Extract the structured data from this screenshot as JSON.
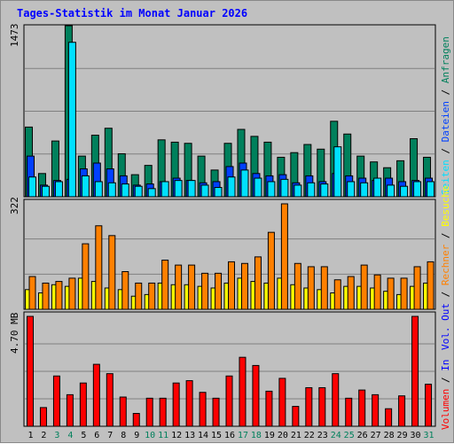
{
  "title": "Tages-Statistik im Monat Januar 2026",
  "colors": {
    "background": "#C0C0C0",
    "title": "#0000FF",
    "anfragen": "#00805C",
    "dateien": "#0040FF",
    "seiten": "#00E0FF",
    "besuche": "#FFFF00",
    "rechner": "#FF8000",
    "volumen": "#FF0000",
    "weekend_day": "#00805C",
    "normal_day": "#000000"
  },
  "chart_data": [
    {
      "type": "bar",
      "panel": "top",
      "y_max_label": "1473",
      "ylim": [
        0,
        1473
      ],
      "grid": true,
      "legend_placement": "right, vertical",
      "legend": [
        {
          "label": "Anfragen",
          "color": "#00805C"
        },
        {
          "label": "Dateien",
          "color": "#0040FF"
        },
        {
          "label": "Seiten",
          "color": "#00E0FF"
        }
      ],
      "categories": [
        "1",
        "2",
        "3",
        "4",
        "5",
        "6",
        "7",
        "8",
        "9",
        "10",
        "11",
        "12",
        "13",
        "14",
        "15",
        "16",
        "17",
        "18",
        "19",
        "20",
        "21",
        "22",
        "23",
        "24",
        "25",
        "26",
        "27",
        "28",
        "29",
        "30",
        "31"
      ],
      "series": [
        {
          "name": "Anfragen",
          "values": [
            600,
            200,
            480,
            1473,
            350,
            530,
            590,
            370,
            190,
            270,
            490,
            470,
            460,
            350,
            230,
            460,
            580,
            520,
            470,
            340,
            380,
            450,
            410,
            650,
            540,
            350,
            300,
            250,
            310,
            500,
            340
          ]
        },
        {
          "name": "Dateien",
          "values": [
            350,
            100,
            140,
            150,
            240,
            290,
            240,
            180,
            100,
            110,
            130,
            160,
            140,
            120,
            130,
            260,
            290,
            200,
            180,
            190,
            120,
            180,
            130,
            200,
            180,
            160,
            140,
            160,
            130,
            140,
            160
          ]
        },
        {
          "name": "Seiten",
          "values": [
            170,
            90,
            130,
            1330,
            180,
            130,
            120,
            110,
            90,
            70,
            130,
            140,
            140,
            100,
            80,
            170,
            230,
            160,
            130,
            150,
            100,
            120,
            110,
            430,
            130,
            120,
            160,
            100,
            90,
            130,
            130
          ]
        }
      ]
    },
    {
      "type": "bar",
      "panel": "middle",
      "y_max_label": "322",
      "ylim": [
        0,
        322
      ],
      "grid": true,
      "legend_placement": "right, vertical",
      "legend": [
        {
          "label": "Besuche",
          "color": "#FFFF00"
        },
        {
          "label": "Rechner",
          "color": "#FF8000"
        },
        {
          "label": "Out",
          "color": "#FFFF00"
        },
        {
          "label": "Vol.",
          "color": "#0000FF"
        }
      ],
      "categories": [
        "1",
        "2",
        "3",
        "4",
        "5",
        "6",
        "7",
        "8",
        "9",
        "10",
        "11",
        "12",
        "13",
        "14",
        "15",
        "16",
        "17",
        "18",
        "19",
        "20",
        "21",
        "22",
        "23",
        "24",
        "25",
        "26",
        "27",
        "28",
        "29",
        "30",
        "31"
      ],
      "series": [
        {
          "name": "Besuche",
          "values": [
            60,
            50,
            75,
            70,
            95,
            85,
            65,
            60,
            40,
            45,
            80,
            75,
            75,
            70,
            65,
            80,
            95,
            85,
            80,
            95,
            75,
            65,
            60,
            50,
            70,
            70,
            65,
            55,
            45,
            70,
            80
          ]
        },
        {
          "name": "Rechner",
          "values": [
            100,
            80,
            85,
            95,
            200,
            255,
            225,
            115,
            80,
            80,
            150,
            135,
            135,
            110,
            110,
            145,
            140,
            160,
            235,
            322,
            140,
            130,
            130,
            90,
            100,
            135,
            105,
            95,
            95,
            130,
            145
          ]
        }
      ]
    },
    {
      "type": "bar",
      "panel": "bottom",
      "y_max_label": "4.70 MB",
      "ylim": [
        0,
        4.7
      ],
      "grid": true,
      "legend_placement": "right, vertical",
      "legend": [
        {
          "label": "Volumen",
          "color": "#FF0000"
        },
        {
          "label": "In",
          "color": "#0000FF"
        }
      ],
      "categories": [
        "1",
        "2",
        "3",
        "4",
        "5",
        "6",
        "7",
        "8",
        "9",
        "10",
        "11",
        "12",
        "13",
        "14",
        "15",
        "16",
        "17",
        "18",
        "19",
        "20",
        "21",
        "22",
        "23",
        "24",
        "25",
        "26",
        "27",
        "28",
        "29",
        "30",
        "31"
      ],
      "weekend_days": [
        "3",
        "4",
        "10",
        "11",
        "17",
        "18",
        "24",
        "25",
        "31"
      ],
      "series": [
        {
          "name": "Volumen",
          "values": [
            4.7,
            0.8,
            2.15,
            1.35,
            1.85,
            2.65,
            2.25,
            1.25,
            0.55,
            1.2,
            1.2,
            1.85,
            1.95,
            1.45,
            1.2,
            2.15,
            2.95,
            2.6,
            1.5,
            2.05,
            0.85,
            1.65,
            1.65,
            2.25,
            1.2,
            1.55,
            1.35,
            0.75,
            1.3,
            4.7,
            1.8
          ]
        }
      ]
    }
  ]
}
